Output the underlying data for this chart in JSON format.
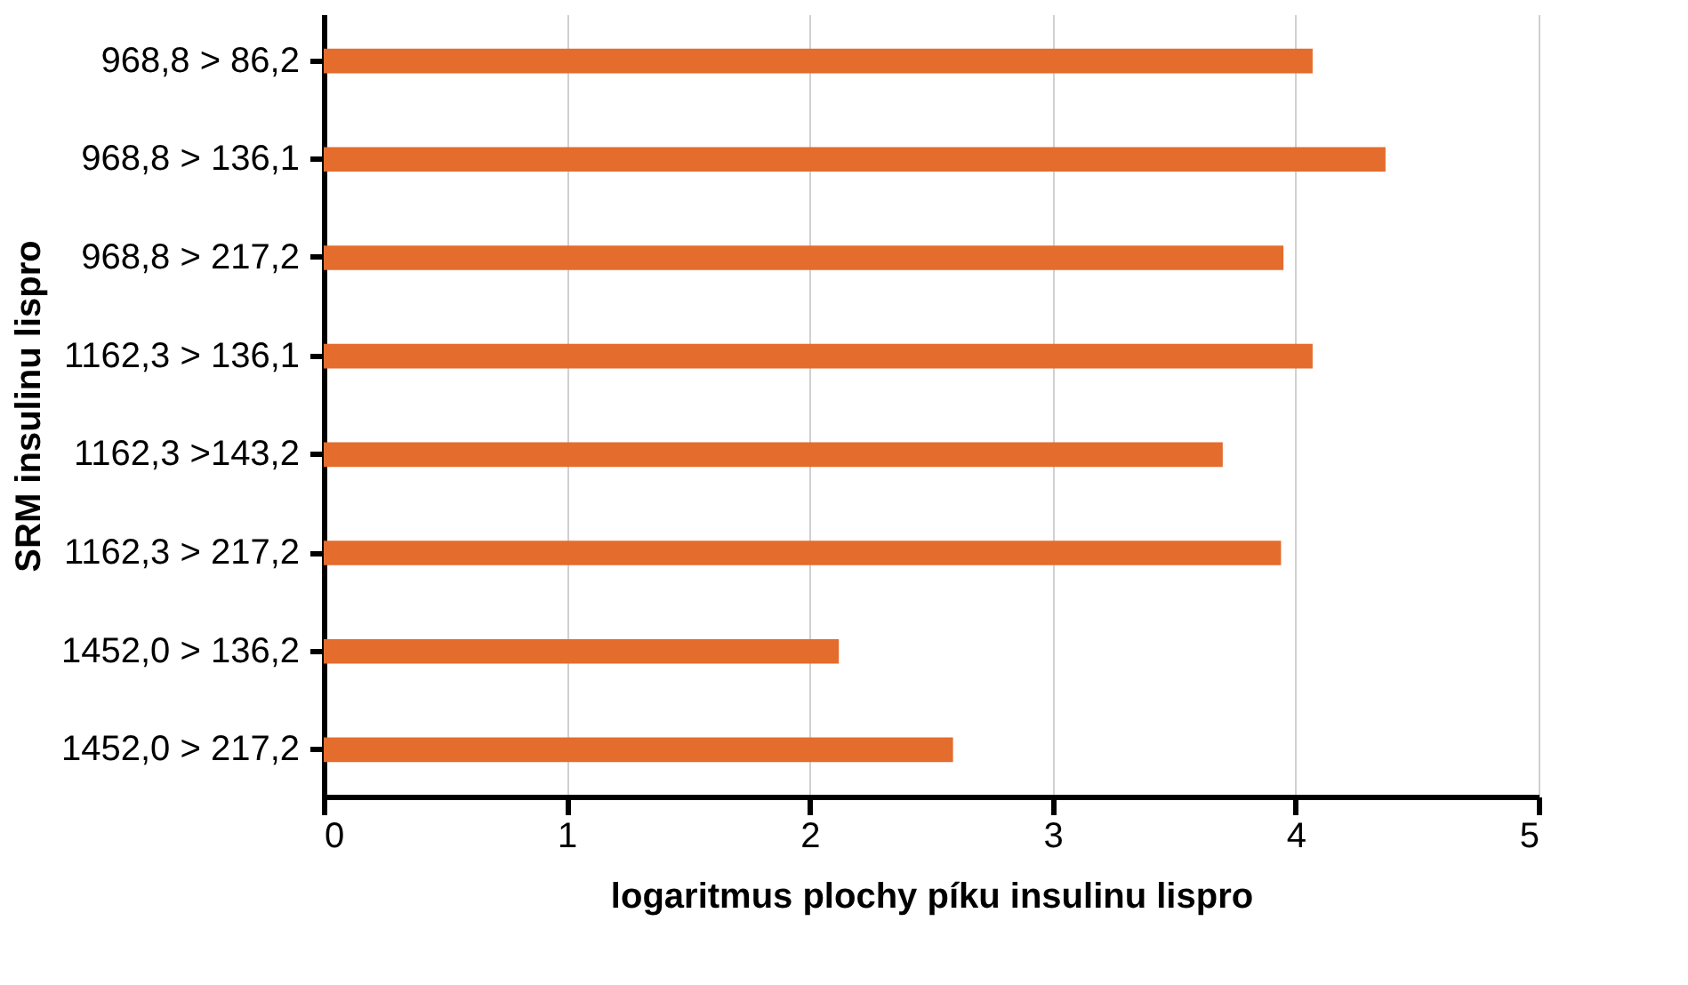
{
  "chart_data": {
    "type": "bar",
    "orientation": "horizontal",
    "xlabel": "logaritmus plochy píku insulinu lispro",
    "ylabel": "SRM insulinu lispro",
    "categories": [
      "968,8 > 86,2",
      "968,8 > 136,1",
      "968,8 > 217,2",
      "1162,3 > 136,1",
      "1162,3 >143,2",
      "1162,3 > 217,2",
      "1452,0 > 136,2",
      "1452,0 > 217,2"
    ],
    "values": [
      4.07,
      4.37,
      3.95,
      4.07,
      3.7,
      3.94,
      2.12,
      2.59
    ],
    "color": "#e46c2c",
    "xlim": [
      0,
      5
    ],
    "xticks": [
      0,
      1,
      2,
      3,
      4,
      5
    ],
    "grid": "x"
  }
}
